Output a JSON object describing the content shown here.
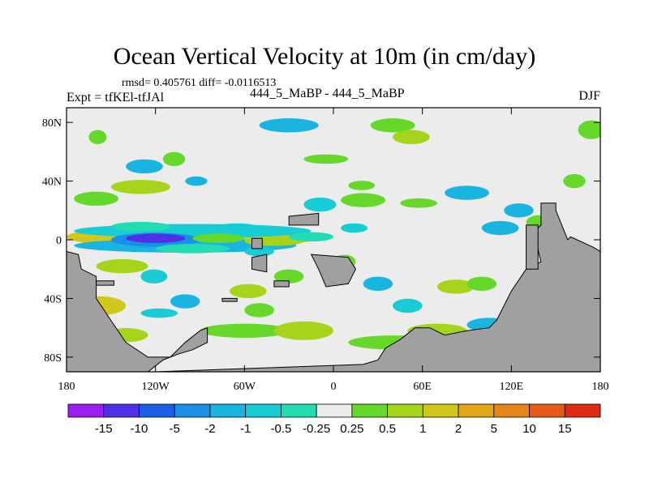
{
  "chart_data": {
    "type": "heatmap",
    "title": "Ocean Vertical Velocity at 10m (in cm/day)",
    "stats_text": "rmsd= 0.405761 diff= -0.0116513",
    "experiment_label": "Expt = tfKEl-tfJAl",
    "run_label": "444_5_MaBP - 444_5_MaBP",
    "season_label": "DJF",
    "x_ticks": [
      "180",
      "120W",
      "60W",
      "0",
      "60E",
      "120E",
      "180"
    ],
    "y_ticks": [
      "80N",
      "40N",
      "0",
      "40S",
      "80S"
    ],
    "xlim": [
      -180,
      180
    ],
    "ylim": [
      -90,
      90
    ],
    "colorbar": {
      "labels": [
        "-15",
        "-10",
        "-5",
        "-2",
        "-1",
        "-0.5",
        "-0.25",
        "0.25",
        "0.5",
        "1",
        "2",
        "5",
        "10",
        "15"
      ],
      "colors": [
        "#9b1ef0",
        "#5030e6",
        "#1a5ee8",
        "#1b8fe6",
        "#19b4e0",
        "#18ccd6",
        "#22dcb4",
        "#ececec",
        "#66d82a",
        "#a6d41a",
        "#d2c81a",
        "#e0a818",
        "#e68618",
        "#e65a18",
        "#e02a14"
      ]
    },
    "land_color": "#a0a0a0",
    "background_color": "#ececec"
  }
}
